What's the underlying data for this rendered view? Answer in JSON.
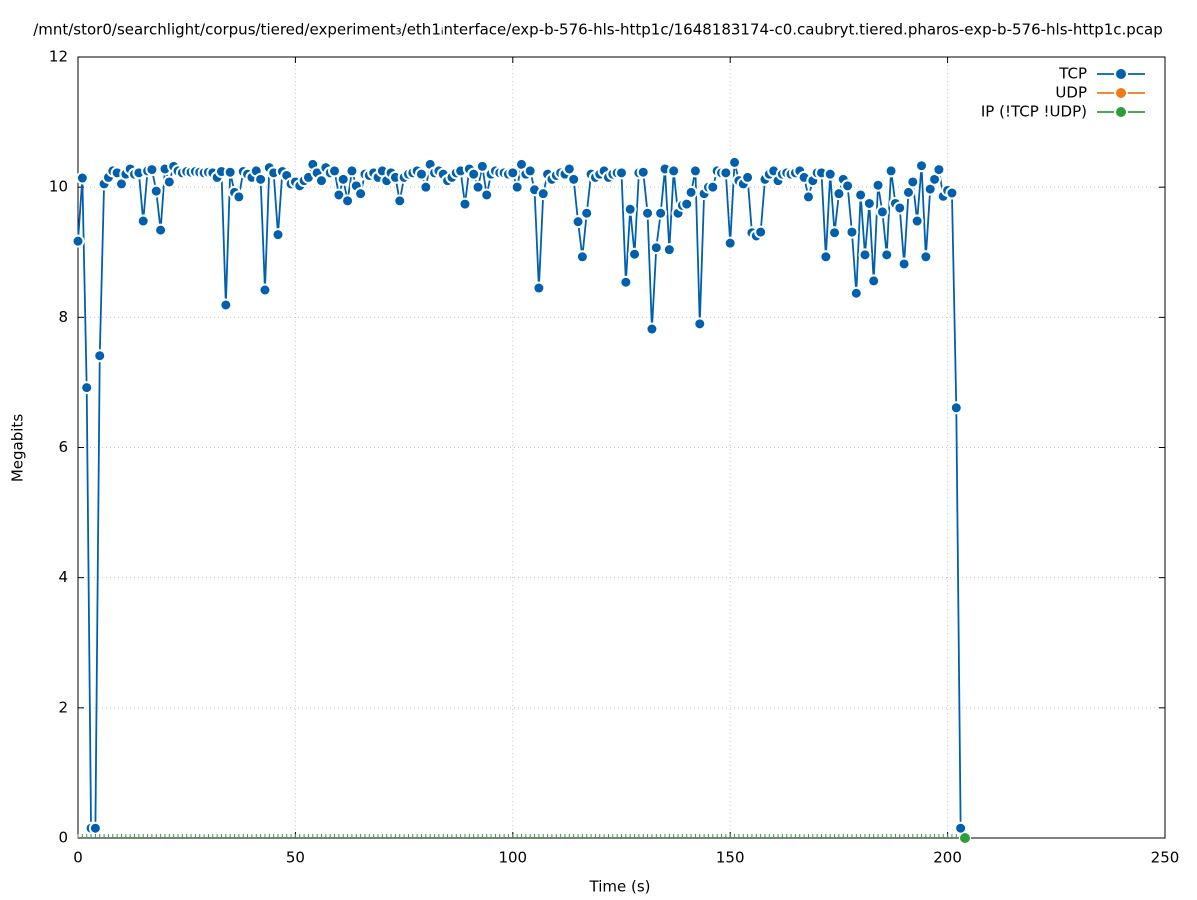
{
  "chart_data": {
    "type": "line",
    "title": "/mnt/stor0/searchlight/corpus/tiered/experiment₃/eth1ᵢnterface/exp-b-576-hls-http1c/1648183174-c0.caubryt.tiered.pharos-exp-b-576-hls-http1c.pcap",
    "x_label": "Time (s)",
    "y_label": "Megabits",
    "xlim": [
      0,
      250
    ],
    "ylim": [
      0,
      12
    ],
    "xticks": [
      0,
      50,
      100,
      150,
      200,
      250
    ],
    "yticks": [
      0,
      2,
      4,
      6,
      8,
      10,
      12
    ],
    "grid": true,
    "legend": "top-right",
    "series": [
      {
        "name": "TCP",
        "color": "#0060ad",
        "x": [
          0,
          1,
          2,
          3,
          4,
          5,
          6,
          7,
          8,
          9,
          10,
          11,
          12,
          13,
          14,
          15,
          16,
          17,
          18,
          19,
          20,
          21,
          22,
          23,
          24,
          25,
          26,
          27,
          28,
          29,
          30,
          31,
          32,
          33,
          34,
          35,
          36,
          37,
          38,
          39,
          40,
          41,
          42,
          43,
          44,
          45,
          46,
          47,
          48,
          49,
          50,
          51,
          52,
          53,
          54,
          55,
          56,
          57,
          58,
          59,
          60,
          61,
          62,
          63,
          64,
          65,
          66,
          67,
          68,
          69,
          70,
          71,
          72,
          73,
          74,
          75,
          76,
          77,
          78,
          79,
          80,
          81,
          82,
          83,
          84,
          85,
          86,
          87,
          88,
          89,
          90,
          91,
          92,
          93,
          94,
          95,
          96,
          97,
          98,
          99,
          100,
          101,
          102,
          103,
          104,
          105,
          106,
          107,
          108,
          109,
          110,
          111,
          112,
          113,
          114,
          115,
          116,
          117,
          118,
          119,
          120,
          121,
          122,
          123,
          124,
          125,
          126,
          127,
          128,
          129,
          130,
          131,
          132,
          133,
          134,
          135,
          136,
          137,
          138,
          139,
          140,
          141,
          142,
          143,
          144,
          145,
          146,
          147,
          148,
          149,
          150,
          151,
          152,
          153,
          154,
          155,
          156,
          157,
          158,
          159,
          160,
          161,
          162,
          163,
          164,
          165,
          166,
          167,
          168,
          169,
          170,
          171,
          172,
          173,
          174,
          175,
          176,
          177,
          178,
          179,
          180,
          181,
          182,
          183,
          184,
          185,
          186,
          187,
          188,
          189,
          190,
          191,
          192,
          193,
          194,
          195,
          196,
          197,
          198,
          199,
          200,
          201,
          202,
          203
        ],
        "values": [
          9.17,
          10.14,
          6.92,
          0.15,
          0.15,
          7.41,
          10.05,
          10.15,
          10.25,
          10.22,
          10.05,
          10.2,
          10.28,
          10.2,
          10.22,
          9.48,
          10.25,
          10.27,
          9.94,
          9.34,
          10.28,
          10.08,
          10.32,
          10.25,
          10.22,
          10.24,
          10.23,
          10.24,
          10.23,
          10.22,
          10.23,
          10.22,
          10.15,
          10.24,
          8.19,
          10.23,
          9.92,
          9.85,
          10.24,
          10.2,
          10.15,
          10.25,
          10.12,
          8.42,
          10.3,
          10.22,
          9.27,
          10.24,
          10.18,
          10.05,
          10.08,
          10.02,
          10.1,
          10.15,
          10.35,
          10.22,
          10.1,
          10.3,
          10.22,
          10.25,
          9.88,
          10.12,
          9.79,
          10.25,
          10.02,
          9.9,
          10.2,
          10.18,
          10.22,
          10.15,
          10.25,
          10.1,
          10.22,
          10.15,
          9.79,
          10.15,
          10.2,
          10.22,
          10.25,
          10.2,
          10.0,
          10.35,
          10.22,
          10.25,
          10.2,
          10.1,
          10.15,
          10.22,
          10.25,
          9.74,
          10.28,
          10.2,
          10.0,
          10.32,
          9.88,
          10.2,
          10.25,
          10.22,
          10.22,
          10.2,
          10.22,
          10.0,
          10.35,
          10.2,
          10.25,
          9.96,
          8.45,
          9.9,
          10.2,
          10.12,
          10.18,
          10.22,
          10.2,
          10.28,
          10.12,
          9.47,
          8.93,
          9.6,
          10.2,
          10.15,
          10.2,
          10.25,
          10.15,
          10.2,
          10.22,
          10.22,
          8.54,
          9.66,
          8.97,
          10.22,
          10.23,
          9.6,
          7.82,
          9.07,
          9.6,
          10.28,
          9.04,
          10.25,
          9.6,
          9.72,
          9.74,
          9.92,
          10.25,
          7.9,
          9.9,
          10.0,
          10.0,
          10.25,
          10.22,
          10.22,
          9.14,
          10.38,
          10.1,
          10.05,
          10.15,
          9.3,
          9.25,
          9.31,
          10.12,
          10.2,
          10.25,
          10.1,
          10.2,
          10.22,
          10.2,
          10.22,
          10.25,
          10.15,
          9.85,
          10.1,
          10.22,
          10.22,
          8.93,
          10.2,
          9.3,
          9.9,
          10.12,
          10.02,
          9.31,
          8.37,
          9.88,
          8.96,
          9.75,
          8.56,
          10.03,
          9.62,
          8.96,
          10.25,
          9.75,
          9.68,
          8.82,
          9.92,
          10.08,
          9.48,
          10.33,
          8.93,
          9.97,
          10.12,
          10.27,
          9.86,
          9.95,
          9.91,
          6.61,
          0.15
        ]
      },
      {
        "name": "UDP",
        "color": "#f07a14",
        "x": [],
        "values": []
      },
      {
        "name": "IP (!TCP  !UDP)",
        "color": "#2e9e3a",
        "x": [
          0,
          1,
          2,
          3,
          4,
          5,
          6,
          7,
          8,
          9,
          10,
          11,
          12,
          13,
          14,
          15,
          16,
          17,
          18,
          19,
          20,
          21,
          22,
          23,
          24,
          25,
          26,
          27,
          28,
          29,
          30,
          31,
          32,
          33,
          34,
          35,
          36,
          37,
          38,
          39,
          40,
          41,
          42,
          43,
          44,
          45,
          46,
          47,
          48,
          49,
          50,
          51,
          52,
          53,
          54,
          55,
          56,
          57,
          58,
          59,
          60,
          61,
          62,
          63,
          64,
          65,
          66,
          67,
          68,
          69,
          70,
          71,
          72,
          73,
          74,
          75,
          76,
          77,
          78,
          79,
          80,
          81,
          82,
          83,
          84,
          85,
          86,
          87,
          88,
          89,
          90,
          91,
          92,
          93,
          94,
          95,
          96,
          97,
          98,
          99,
          100,
          101,
          102,
          103,
          104,
          105,
          106,
          107,
          108,
          109,
          110,
          111,
          112,
          113,
          114,
          115,
          116,
          117,
          118,
          119,
          120,
          121,
          122,
          123,
          124,
          125,
          126,
          127,
          128,
          129,
          130,
          131,
          132,
          133,
          134,
          135,
          136,
          137,
          138,
          139,
          140,
          141,
          142,
          143,
          144,
          145,
          146,
          147,
          148,
          149,
          150,
          151,
          152,
          153,
          154,
          155,
          156,
          157,
          158,
          159,
          160,
          161,
          162,
          163,
          164,
          165,
          166,
          167,
          168,
          169,
          170,
          171,
          172,
          173,
          174,
          175,
          176,
          177,
          178,
          179,
          180,
          181,
          182,
          183,
          184,
          185,
          186,
          187,
          188,
          189,
          190,
          191,
          192,
          193,
          194,
          195,
          196,
          197,
          198,
          199,
          200,
          201,
          202,
          203,
          204
        ],
        "values": [
          0,
          0,
          0,
          0,
          0,
          0,
          0,
          0,
          0,
          0,
          0,
          0,
          0,
          0,
          0,
          0,
          0,
          0,
          0,
          0,
          0,
          0,
          0,
          0,
          0,
          0,
          0,
          0,
          0,
          0,
          0,
          0,
          0,
          0,
          0,
          0,
          0,
          0,
          0,
          0,
          0,
          0,
          0,
          0,
          0,
          0,
          0,
          0,
          0,
          0,
          0,
          0,
          0,
          0,
          0,
          0,
          0,
          0,
          0,
          0,
          0,
          0,
          0,
          0,
          0,
          0,
          0,
          0,
          0,
          0,
          0,
          0,
          0,
          0,
          0,
          0,
          0,
          0,
          0,
          0,
          0,
          0,
          0,
          0,
          0,
          0,
          0,
          0,
          0,
          0,
          0,
          0,
          0,
          0,
          0,
          0,
          0,
          0,
          0,
          0,
          0,
          0,
          0,
          0,
          0,
          0,
          0,
          0,
          0,
          0,
          0,
          0,
          0,
          0,
          0,
          0,
          0,
          0,
          0,
          0,
          0,
          0,
          0,
          0,
          0,
          0,
          0,
          0,
          0,
          0,
          0,
          0,
          0,
          0,
          0,
          0,
          0,
          0,
          0,
          0,
          0,
          0,
          0,
          0,
          0,
          0,
          0,
          0,
          0,
          0,
          0,
          0,
          0,
          0,
          0,
          0,
          0,
          0,
          0,
          0,
          0,
          0,
          0,
          0,
          0,
          0,
          0,
          0,
          0,
          0,
          0,
          0,
          0,
          0,
          0,
          0,
          0,
          0,
          0,
          0,
          0,
          0,
          0,
          0,
          0,
          0,
          0,
          0,
          0,
          0,
          0,
          0,
          0,
          0,
          0,
          0,
          0,
          0,
          0,
          0,
          0,
          0,
          0,
          0,
          0
        ]
      }
    ]
  }
}
